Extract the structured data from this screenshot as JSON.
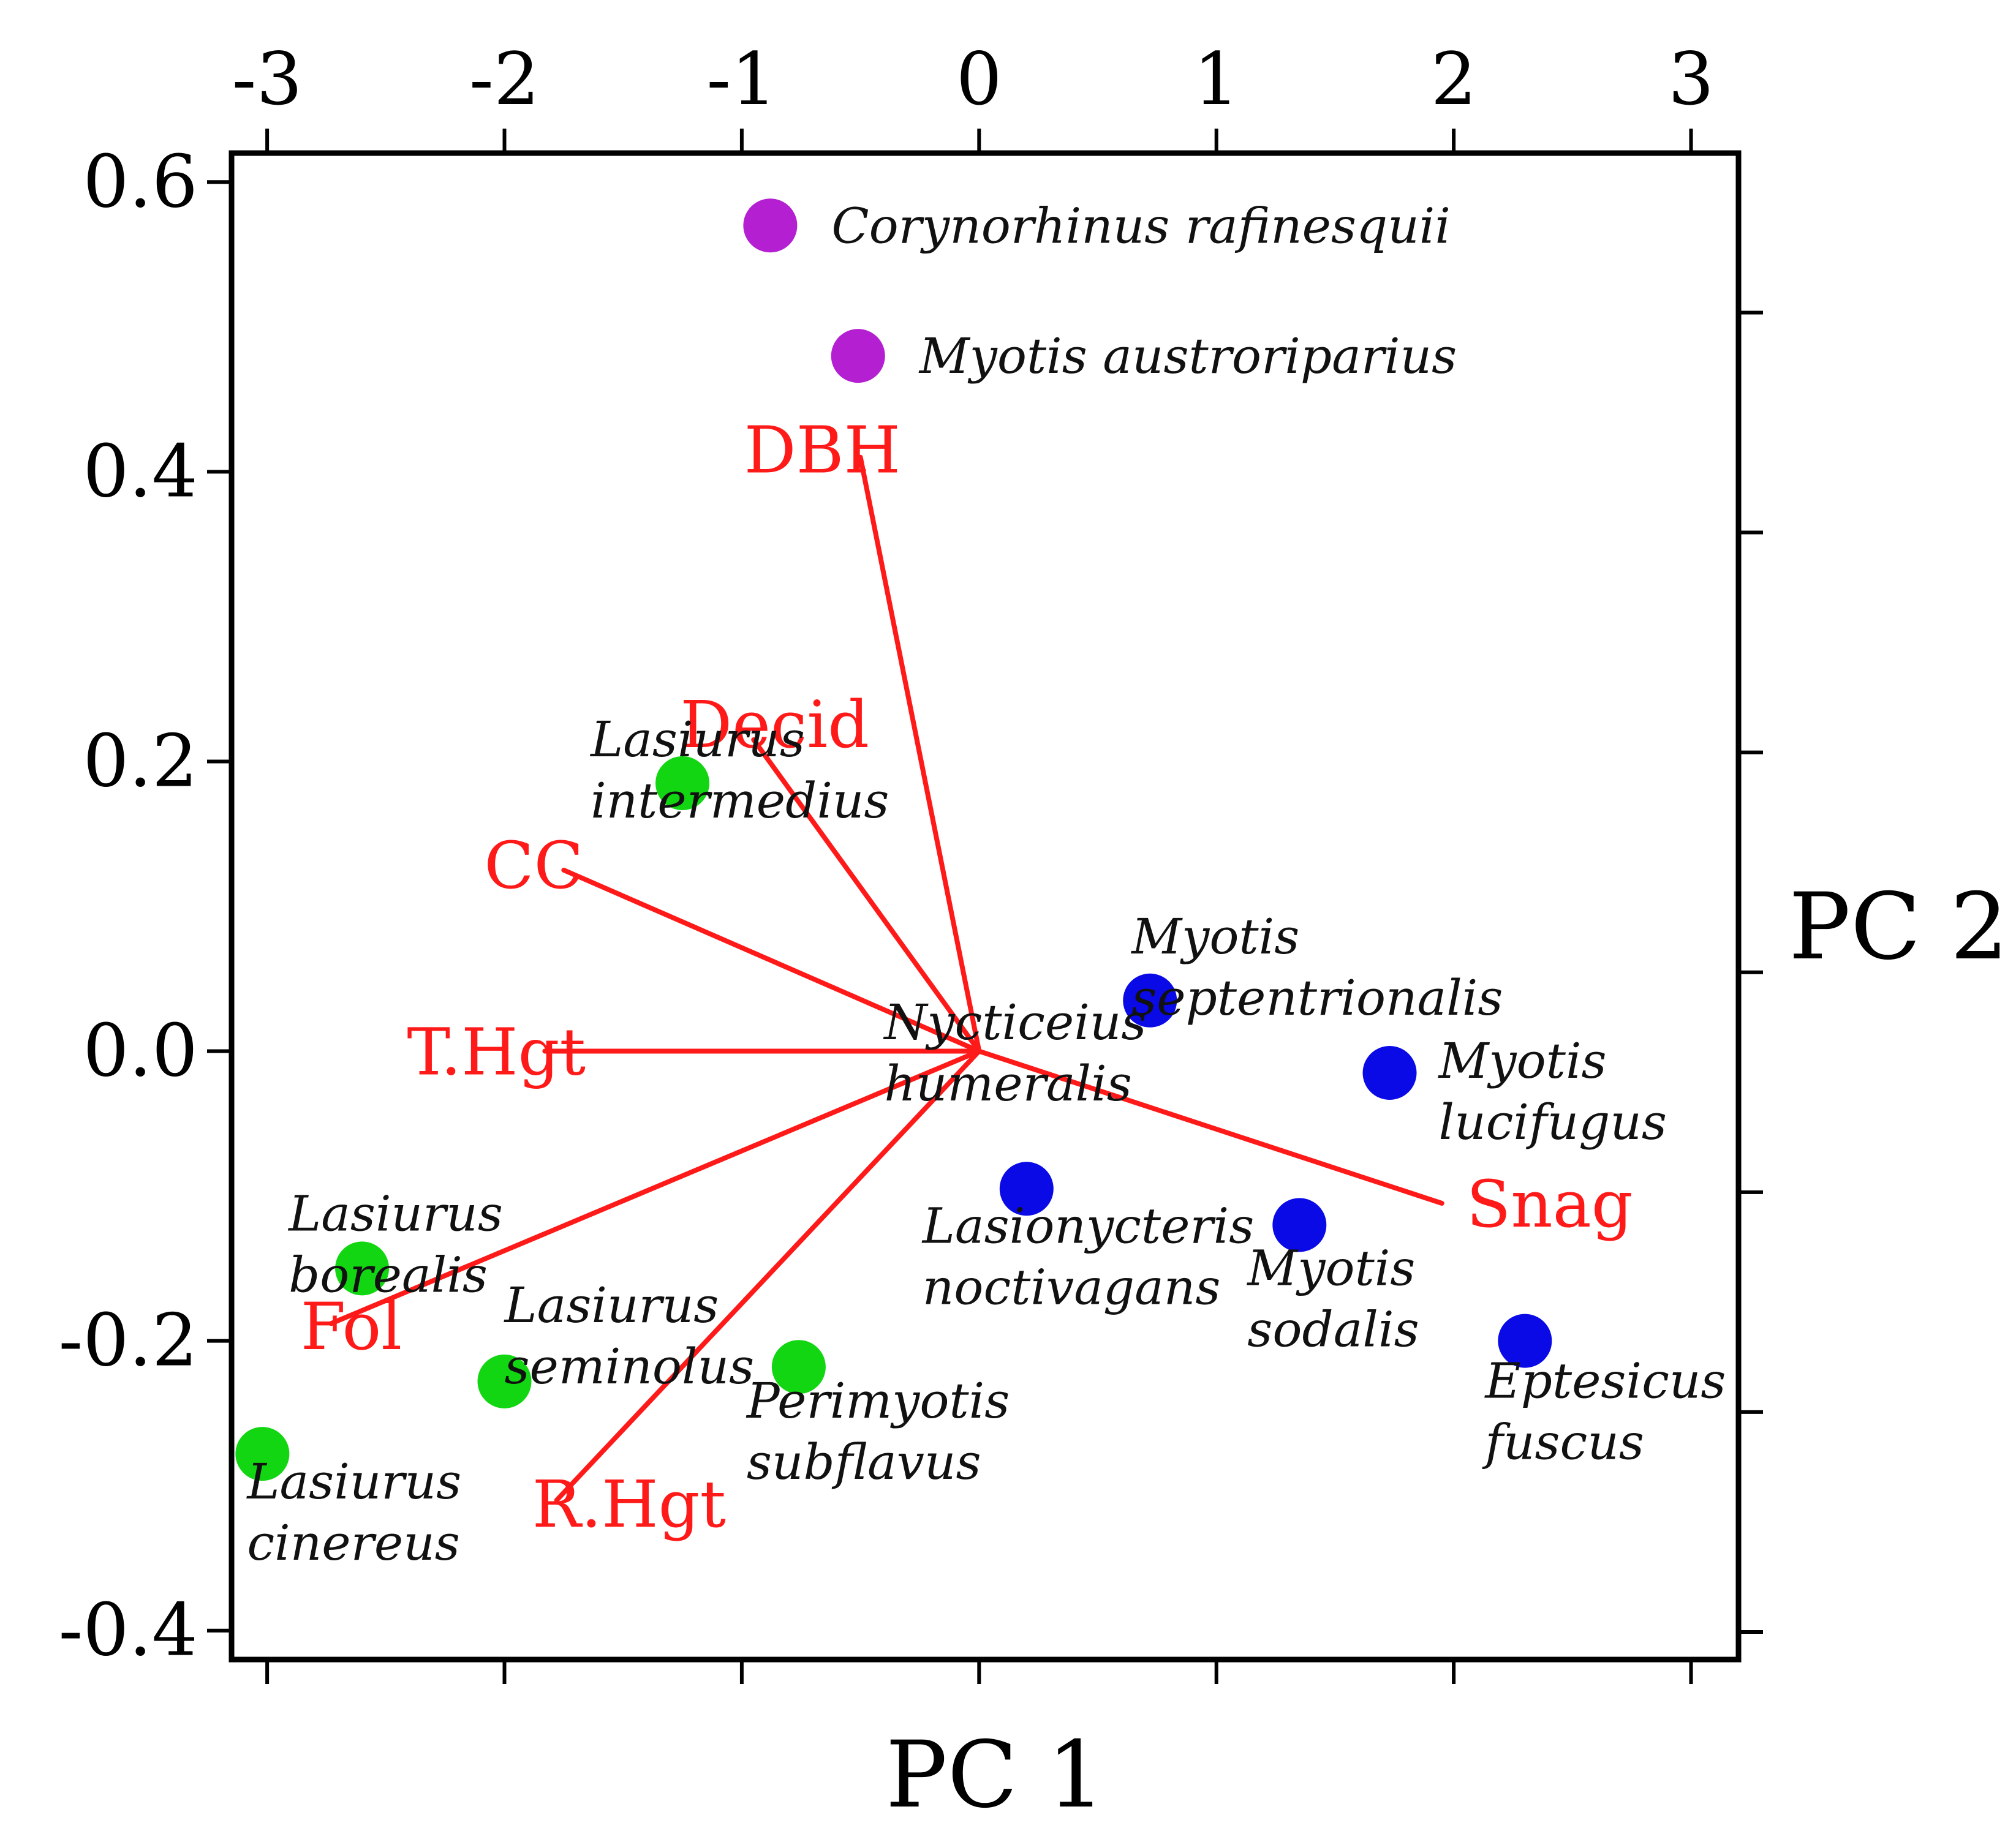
{
  "chart_data": {
    "type": "scatter",
    "subtype": "biplot",
    "title": "",
    "xlabel": "PC 1",
    "ylabel": "PC 2",
    "left_axis": {
      "ticks": [
        "0.6",
        "0.4",
        "0.2",
        "0.0",
        "-0.2",
        "-0.4"
      ],
      "values": [
        0.6,
        0.4,
        0.2,
        0.0,
        -0.2,
        -0.4
      ],
      "range": [
        -0.42,
        0.62
      ]
    },
    "top_axis": {
      "ticks": [
        "-3",
        "-2",
        "-1",
        "0",
        "1",
        "2",
        "3"
      ],
      "values": [
        -3,
        -2,
        -1,
        0,
        1,
        2,
        3
      ],
      "range": [
        -3.15,
        3.2
      ]
    },
    "colors": {
      "purple": "#b31fd1",
      "green": "#12d612",
      "blue": "#0a0ae6",
      "vector": "#ff1a1a",
      "axis": "#000000"
    },
    "points": [
      {
        "name": "Corynorhinus rafinesquii",
        "lines": [
          "Corynorhinus rafinesquii"
        ],
        "pc1": -0.88,
        "pc2": 0.57,
        "group": "purple",
        "label_dx": 1.0,
        "label_dy": 0.0,
        "anchor": "start"
      },
      {
        "name": "Myotis austroriparius",
        "lines": [
          "Myotis austroriparius"
        ],
        "pc1": -0.51,
        "pc2": 0.48,
        "group": "purple",
        "label_dx": 1.0,
        "label_dy": 0.0,
        "anchor": "start"
      },
      {
        "name": "Lasiurus intermedius",
        "lines": [
          "Lasiurus",
          "intermedius"
        ],
        "pc1": -1.25,
        "pc2": 0.185,
        "group": "green",
        "label_dx": -1.5,
        "label_dy": 0.72,
        "anchor": "start"
      },
      {
        "name": "Lasiurus borealis",
        "lines": [
          "Lasiurus",
          "borealis"
        ],
        "pc1": -2.6,
        "pc2": -0.15,
        "group": "green",
        "label_dx": -1.2,
        "label_dy": 0.9,
        "anchor": "start"
      },
      {
        "name": "Lasiurus seminolus",
        "lines": [
          "Lasiurus",
          "seminolus"
        ],
        "pc1": -2.0,
        "pc2": -0.228,
        "group": "green",
        "label_dx": 0.0,
        "label_dy": 1.25,
        "anchor": "start"
      },
      {
        "name": "Lasiurus cinereus",
        "lines": [
          "Lasiurus",
          "cinereus"
        ],
        "pc1": -3.02,
        "pc2": -0.278,
        "group": "green",
        "label_dx": -0.25,
        "label_dy": -0.45,
        "anchor": "start"
      },
      {
        "name": "Perimyotis subflavus",
        "lines": [
          "Perimyotis",
          "subflavus"
        ],
        "pc1": -0.76,
        "pc2": -0.218,
        "group": "green",
        "label_dx": -0.85,
        "label_dy": -0.55,
        "anchor": "start"
      },
      {
        "name": "Nycticeius humeralis",
        "lines": [
          "Nycticeius",
          "humeralis"
        ],
        "pc1": -0.4,
        "pc2": 0.02,
        "group": "none",
        "label_dx": 0.0,
        "label_dy": 0.0,
        "anchor": "start"
      },
      {
        "name": "Myotis septentrionalis",
        "lines": [
          "Myotis",
          "septentrionalis"
        ],
        "pc1": 0.72,
        "pc2": 0.035,
        "group": "blue",
        "label_dx": -0.3,
        "label_dy": 1.05,
        "anchor": "start"
      },
      {
        "name": "Lasionycteris noctivagans",
        "lines": [
          "Lasionycteris",
          "noctivagans"
        ],
        "pc1": 0.2,
        "pc2": -0.095,
        "group": "blue",
        "label_dx": -1.7,
        "label_dy": -0.6,
        "anchor": "start"
      },
      {
        "name": "Myotis sodalis",
        "lines": [
          "Myotis",
          "sodalis"
        ],
        "pc1": 1.35,
        "pc2": -0.12,
        "group": "blue",
        "label_dx": -0.85,
        "label_dy": -0.7,
        "anchor": "start"
      },
      {
        "name": "Eptesicus fuscus",
        "lines": [
          "Eptesicus",
          "fuscus"
        ],
        "pc1": 2.3,
        "pc2": -0.2,
        "group": "blue",
        "label_dx": -0.65,
        "label_dy": -0.65,
        "anchor": "start"
      },
      {
        "name": "Myotis lucifugus",
        "lines": [
          "Myotis",
          "lucifugus"
        ],
        "pc1": 1.73,
        "pc2": -0.015,
        "group": "blue",
        "label_dx": 0.8,
        "label_dy": 0.2,
        "anchor": "start"
      }
    ],
    "vectors": [
      {
        "name": "DBH",
        "pc1": -0.5,
        "pc2": 0.41,
        "label_dx": -1.9,
        "label_dy": 0.1,
        "anchor": "start"
      },
      {
        "name": "Decid",
        "pc1": -0.95,
        "pc2": 0.215,
        "label_dx": -1.2,
        "label_dy": 0.23,
        "anchor": "start"
      },
      {
        "name": "CC",
        "pc1": -1.75,
        "pc2": 0.125,
        "label_dx": -1.3,
        "label_dy": 0.06,
        "anchor": "start"
      },
      {
        "name": "T.Hgt",
        "pc1": -1.83,
        "pc2": 0.0,
        "label_dx": -2.25,
        "label_dy": -0.03,
        "anchor": "start"
      },
      {
        "name": "Fol",
        "pc1": -2.73,
        "pc2": -0.188,
        "label_dx": -0.5,
        "label_dy": -0.07,
        "anchor": "start"
      },
      {
        "name": "R.Hgt",
        "pc1": -1.78,
        "pc2": -0.31,
        "label_dx": -0.4,
        "label_dy": -0.08,
        "anchor": "start"
      },
      {
        "name": "Snag",
        "pc1": 1.95,
        "pc2": -0.105,
        "label_dx": 0.4,
        "label_dy": -0.03,
        "anchor": "start"
      }
    ]
  }
}
